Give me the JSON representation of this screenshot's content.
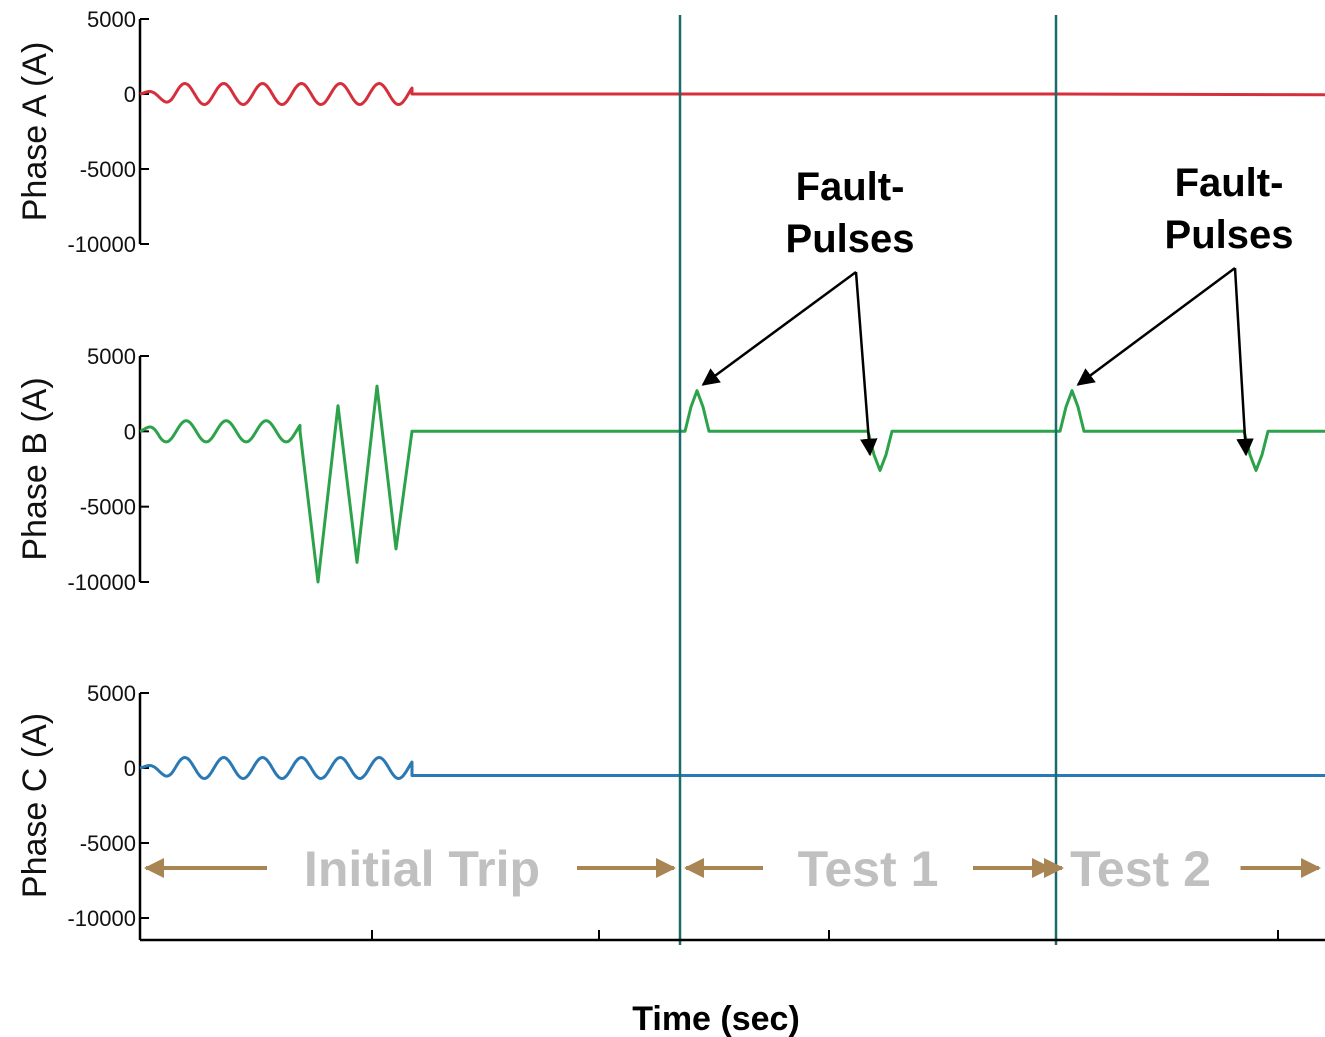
{
  "chart_data": {
    "type": "line",
    "xlabel": "Time (sec)",
    "xlim": [
      0,
      1325
    ],
    "x_tick_positions": [
      372,
      599,
      829,
      1278
    ],
    "panels": [
      {
        "ylabel": "Phase A (A)",
        "ylim": [
          -10000,
          5000
        ],
        "yticks": [
          5000,
          0,
          -5000,
          -10000
        ],
        "ytick_labels": [
          "5000",
          "0",
          "-5000",
          "-10000"
        ],
        "series": [
          {
            "color": "#d62f3c",
            "kind": "ringdown",
            "x": [
              140,
              412,
              680,
              1056,
              1325
            ],
            "y": [
              0,
              0,
              0,
              0,
              -50
            ],
            "amplitude_before_trip": 700,
            "cycles_before_trip": 7
          }
        ]
      },
      {
        "ylabel": "Phase B (A)",
        "ylim": [
          -10000,
          5000
        ],
        "yticks": [
          5000,
          0,
          -5000,
          -10000
        ],
        "ytick_labels": [
          "5000",
          "0",
          "-5000",
          "-10000"
        ],
        "series": [
          {
            "color": "#2ca24a",
            "kind": "fault",
            "x": [
              140,
              300,
              318,
              338,
              357,
              377,
              396,
              412,
              680,
              697,
              880,
              1056,
              1072,
              1256,
              1325
            ],
            "y": [
              0,
              0,
              -10000,
              1700,
              -8700,
              3000,
              -7800,
              0,
              0,
              2700,
              -2600,
              0,
              2700,
              -2600,
              0
            ],
            "amplitude_before_fault": 700
          }
        ]
      },
      {
        "ylabel": "Phase C (A)",
        "ylim": [
          -10000,
          5000
        ],
        "yticks": [
          5000,
          0,
          -5000,
          -10000
        ],
        "ytick_labels": [
          "5000",
          "0",
          "-5000",
          "-10000"
        ],
        "series": [
          {
            "color": "#2b79b4",
            "kind": "ringdown",
            "x": [
              140,
              412,
              680,
              1056,
              1325
            ],
            "y": [
              0,
              -500,
              -500,
              -500,
              -500
            ],
            "amplitude_before_trip": 700,
            "cycles_before_trip": 7
          }
        ]
      }
    ],
    "vlines": {
      "x": [
        680,
        1056
      ],
      "color": "#1a6b6b"
    },
    "segments": [
      {
        "label": "Initial Trip",
        "x_start": 140,
        "x_end": 680
      },
      {
        "label": "Test 1",
        "x_start": 680,
        "x_end": 1056
      },
      {
        "label": "Test 2",
        "x_start": 1056,
        "x_end": 1325
      }
    ],
    "segment_arrow_color": "#a98553",
    "annotations": [
      {
        "text": "Fault-\nPulses",
        "lines": [
          "Fault-",
          "Pulses"
        ],
        "targets": [
          [
            697,
            2700
          ],
          [
            880,
            -2600
          ]
        ]
      },
      {
        "text": "Fault-\nPulses",
        "lines": [
          "Fault-",
          "Pulses"
        ],
        "targets": [
          [
            1072,
            2700
          ],
          [
            1256,
            -2600
          ]
        ]
      }
    ]
  }
}
